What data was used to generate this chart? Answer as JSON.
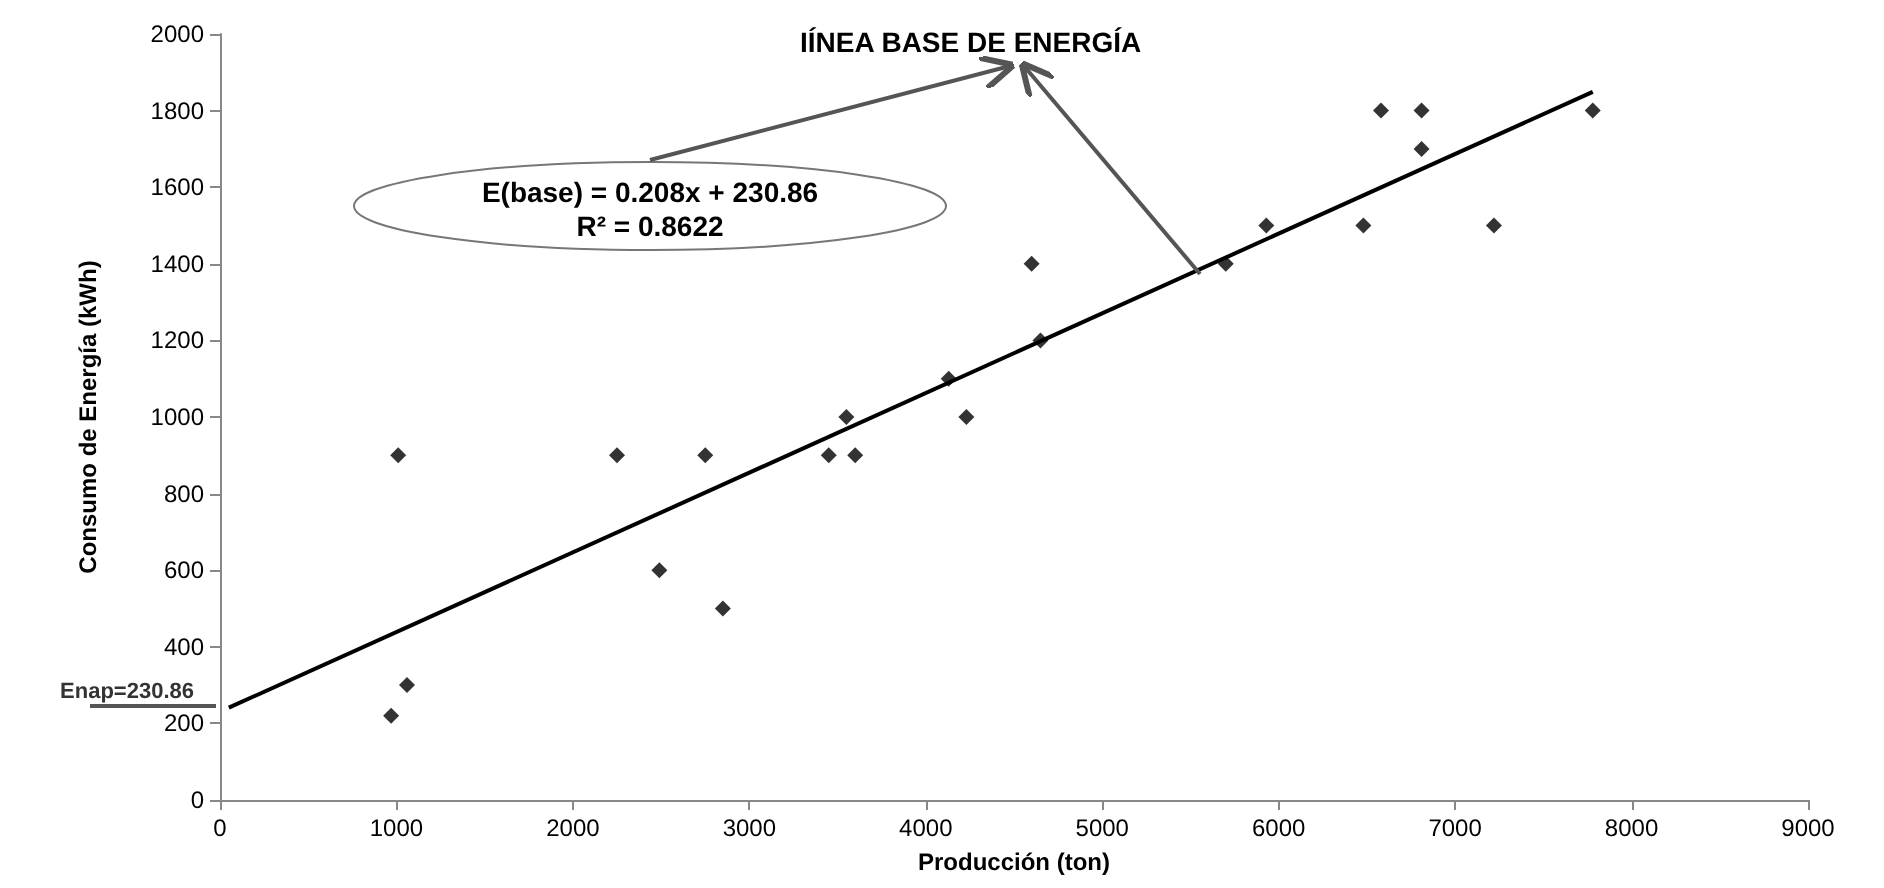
{
  "chart_data": {
    "type": "scatter",
    "xlabel": "Producción (ton)",
    "ylabel": "Consumo de Energía (kWh)",
    "xlim": [
      0,
      9000
    ],
    "xticks": [
      0,
      1000,
      2000,
      3000,
      4000,
      5000,
      6000,
      7000,
      8000,
      9000
    ],
    "ylim": [
      0,
      2000
    ],
    "yticks": [
      0,
      200,
      400,
      600,
      800,
      1000,
      1200,
      1400,
      1600,
      1800,
      2000
    ],
    "grid": false,
    "marker": "diamond",
    "series": [
      {
        "color": "#000000",
        "x": [
          970,
          1010,
          1060,
          2250,
          2490,
          2750,
          2850,
          3450,
          3550,
          3600,
          4130,
          4230,
          4600,
          4650,
          5700,
          5930,
          6480,
          6580,
          6810,
          6810,
          7220,
          7780
        ],
        "values": [
          220,
          900,
          300,
          900,
          600,
          900,
          500,
          900,
          1000,
          900,
          1100,
          1000,
          1400,
          1200,
          1400,
          1500,
          1500,
          1800,
          1800,
          1700,
          1500,
          1800
        ]
      },
      {
        "type": "line",
        "marker": "none",
        "color": "#000000",
        "x": [
          50,
          7780
        ],
        "values": [
          241,
          1849
        ]
      }
    ],
    "annotations": [
      "IÍNEA BASE DE ENERGÍA",
      "E(base) = 0.208x + 230.86",
      "R² = 0.8622",
      {
        "text": "Enap=230.86",
        "x": 0,
        "y": 230.86
      }
    ]
  }
}
